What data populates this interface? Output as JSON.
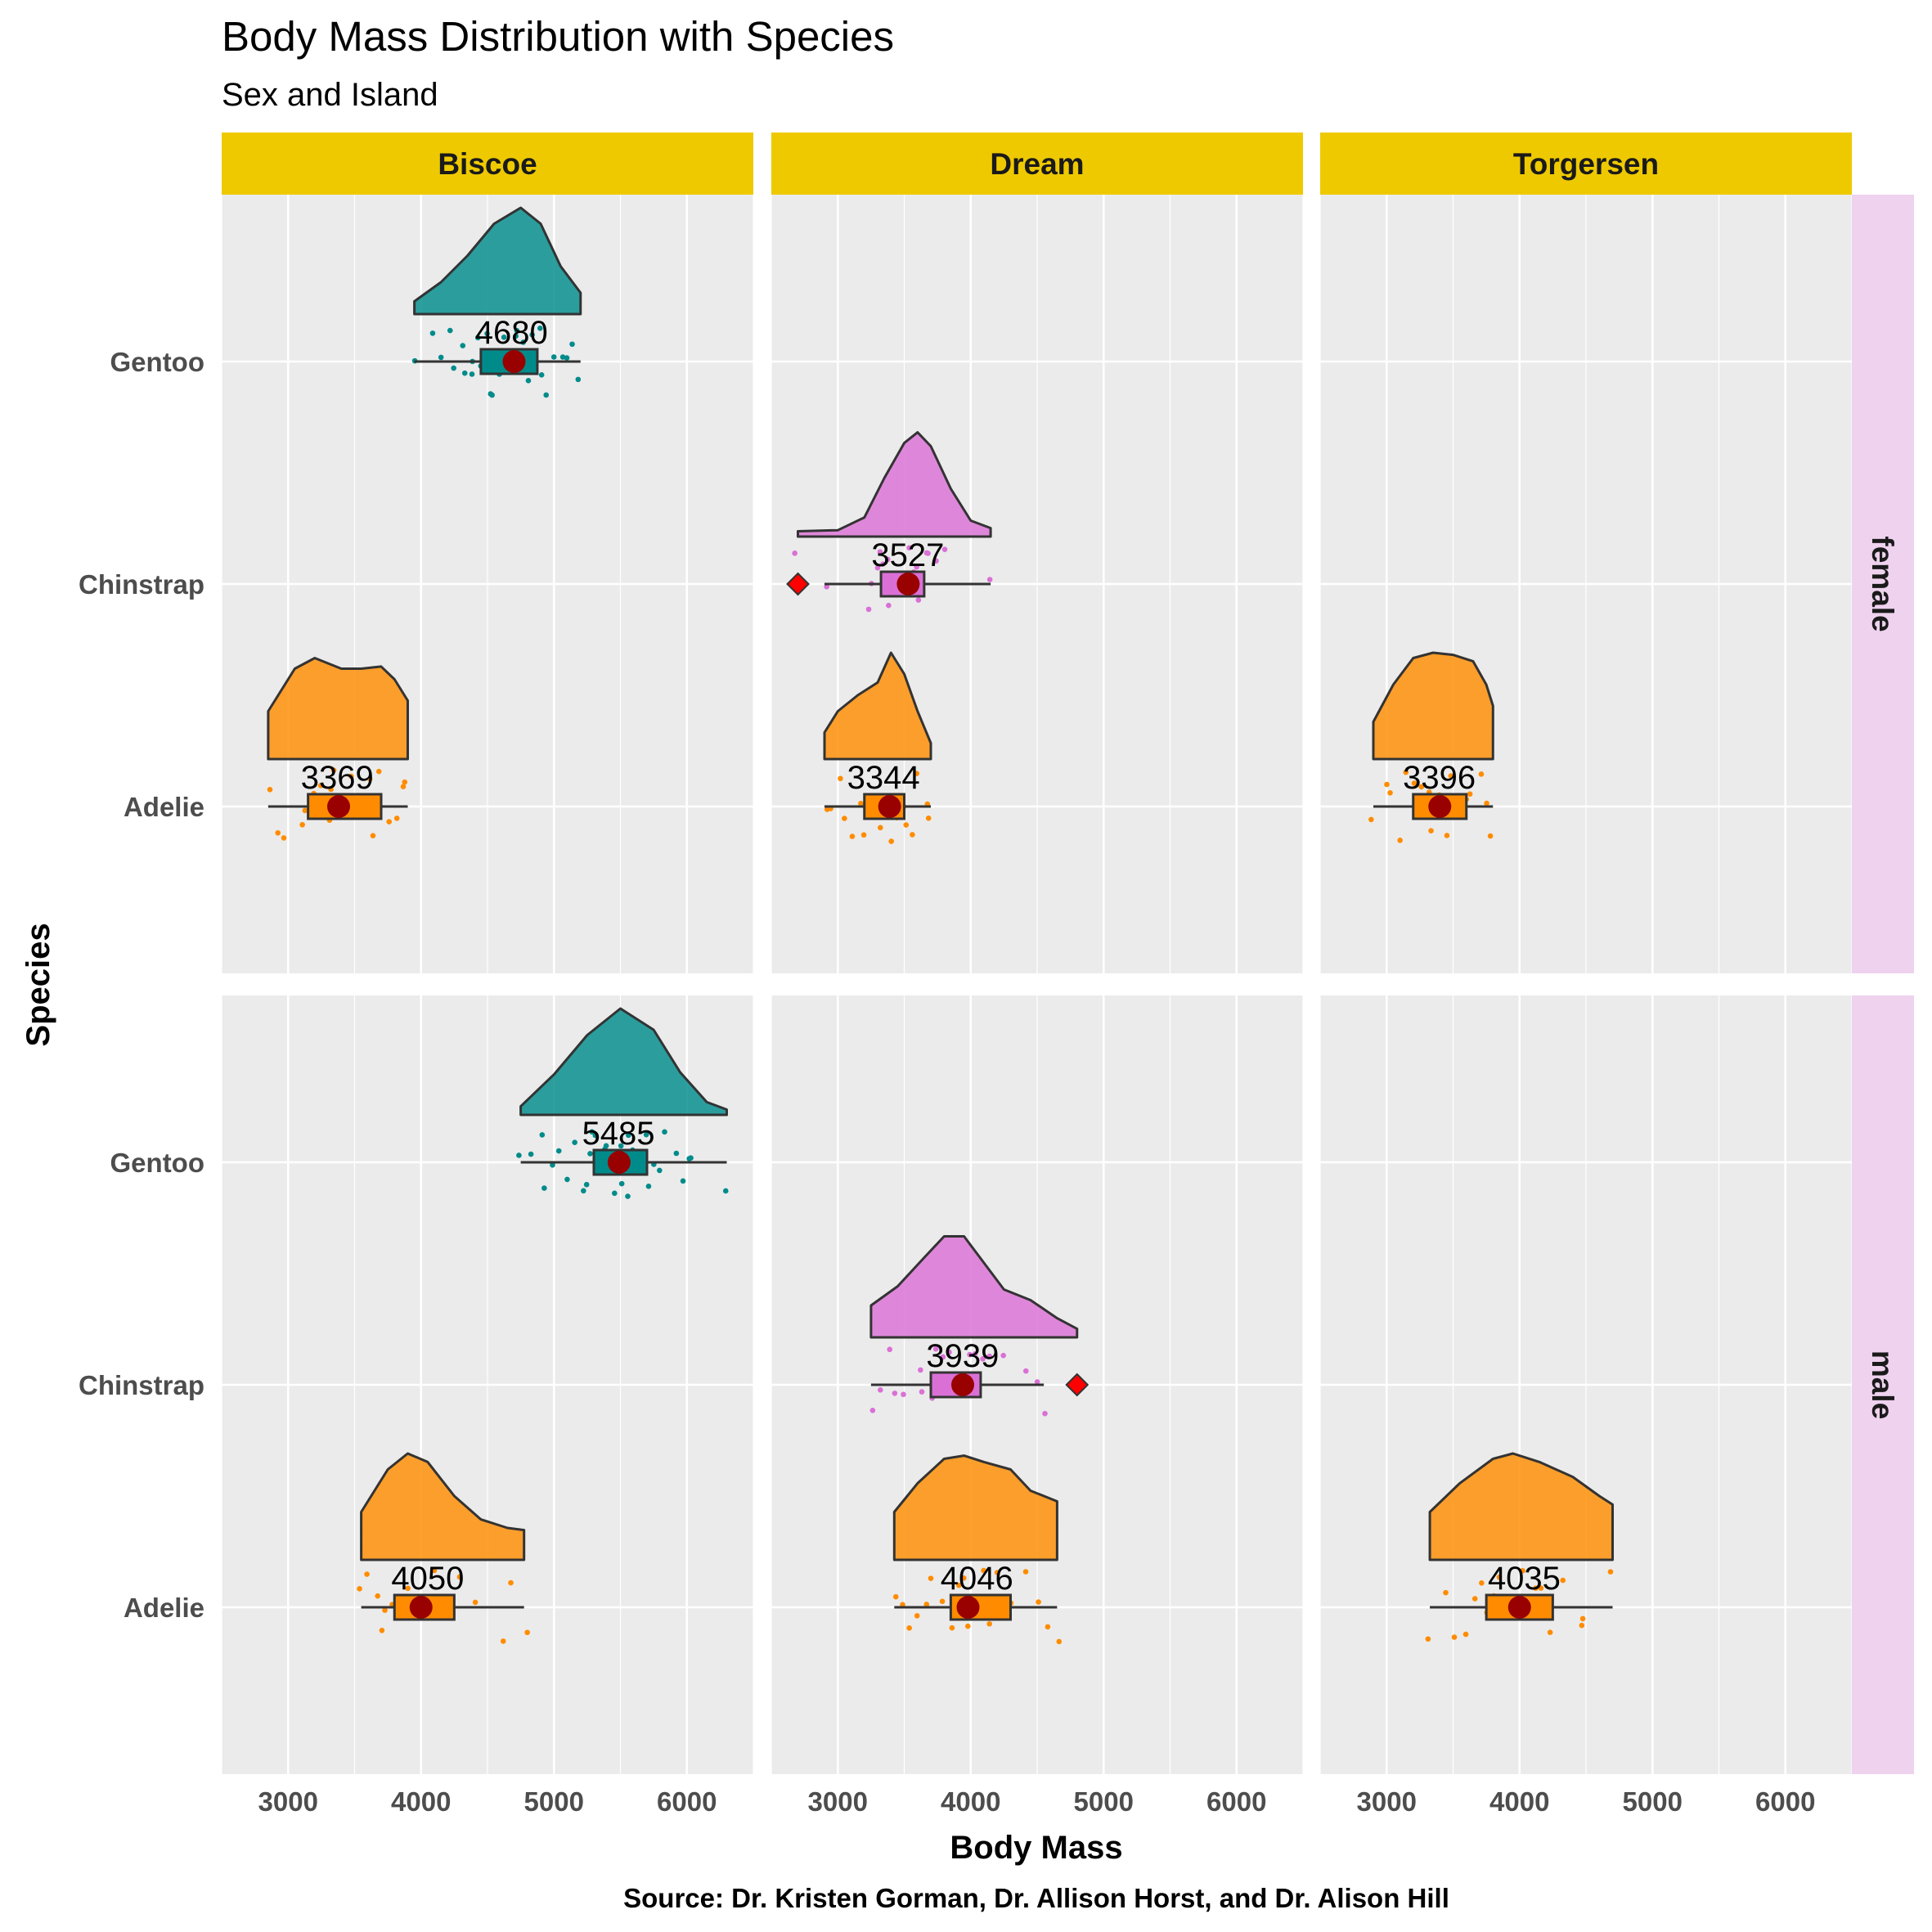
{
  "chart_data": {
    "type": "raincloud",
    "title": "Body Mass Distribution with Species",
    "subtitle": "Sex and Island",
    "xlabel": "Body Mass",
    "ylabel": "Species",
    "caption": "Source: Dr. Kristen Gorman, Dr. Allison Horst, and Dr. Alison Hill",
    "xlim": [
      2500,
      6500
    ],
    "xticks": [
      3000,
      4000,
      5000,
      6000
    ],
    "xtick_labels": [
      "3000",
      "4000",
      "5000",
      "6000"
    ],
    "categories": [
      "Adelie",
      "Chinstrap",
      "Gentoo"
    ],
    "facet_cols": [
      "Biscoe",
      "Dream",
      "Torgersen"
    ],
    "facet_rows": [
      "female",
      "male"
    ],
    "grid": true,
    "colors": {
      "Adelie": "#ff8c00",
      "Chinstrap": "#da70d6",
      "Gentoo": "#008b8b",
      "panel_bg": "#ebebeb",
      "col_strip": "#eec900",
      "row_strip": "#eed2ee",
      "mean_point": "#990000",
      "outlier": "#ff0000"
    },
    "panels": [
      {
        "row": "female",
        "col": "Biscoe",
        "groups": [
          {
            "species": "Gentoo",
            "label": "4680",
            "min": 3950,
            "q1": 4450,
            "median": 4680,
            "q3": 4875,
            "max": 5200,
            "mean": 4700,
            "density": [
              [
                3950,
                0.12
              ],
              [
                4150,
                0.3
              ],
              [
                4350,
                0.55
              ],
              [
                4550,
                0.85
              ],
              [
                4750,
                1.0
              ],
              [
                4900,
                0.85
              ],
              [
                5050,
                0.45
              ],
              [
                5200,
                0.2
              ]
            ],
            "points": [
              3950,
              4100,
              4150,
              4200,
              4250,
              4300,
              4350,
              4400,
              4400,
              4450,
              4450,
              4500,
              4500,
              4550,
              4550,
              4600,
              4600,
              4650,
              4650,
              4700,
              4700,
              4700,
              4750,
              4750,
              4800,
              4800,
              4850,
              4850,
              4900,
              4900,
              4950,
              5000,
              5050,
              5100,
              5150,
              5200
            ]
          },
          {
            "species": "Adelie",
            "label": "3369",
            "min": 2850,
            "q1": 3150,
            "median": 3369,
            "q3": 3700,
            "max": 3900,
            "mean": 3380,
            "density": [
              [
                2850,
                0.45
              ],
              [
                3050,
                0.85
              ],
              [
                3200,
                0.95
              ],
              [
                3400,
                0.85
              ],
              [
                3550,
                0.85
              ],
              [
                3700,
                0.87
              ],
              [
                3800,
                0.75
              ],
              [
                3900,
                0.55
              ]
            ],
            "points": [
              2850,
              2900,
              2950,
              3100,
              3150,
              3200,
              3250,
              3300,
              3300,
              3350,
              3400,
              3450,
              3500,
              3550,
              3600,
              3650,
              3700,
              3750,
              3800,
              3850,
              3900
            ]
          }
        ]
      },
      {
        "row": "female",
        "col": "Dream",
        "groups": [
          {
            "species": "Chinstrap",
            "label": "3527",
            "min": 2900,
            "q1": 3325,
            "median": 3527,
            "q3": 3650,
            "max": 4150,
            "mean": 3530,
            "outliers": [
              2700
            ],
            "density": [
              [
                2700,
                0.05
              ],
              [
                3000,
                0.06
              ],
              [
                3200,
                0.18
              ],
              [
                3350,
                0.55
              ],
              [
                3500,
                0.88
              ],
              [
                3600,
                0.98
              ],
              [
                3700,
                0.85
              ],
              [
                3850,
                0.45
              ],
              [
                4000,
                0.15
              ],
              [
                4150,
                0.08
              ]
            ],
            "points": [
              2700,
              2900,
              3250,
              3275,
              3300,
              3325,
              3350,
              3400,
              3400,
              3450,
              3450,
              3500,
              3525,
              3550,
              3550,
              3600,
              3600,
              3650,
              3700,
              3750,
              3800,
              4150
            ]
          },
          {
            "species": "Adelie",
            "label": "3344",
            "min": 2900,
            "q1": 3200,
            "median": 3344,
            "q3": 3500,
            "max": 3700,
            "mean": 3390,
            "density": [
              [
                2900,
                0.25
              ],
              [
                3000,
                0.45
              ],
              [
                3150,
                0.6
              ],
              [
                3300,
                0.72
              ],
              [
                3400,
                1.0
              ],
              [
                3500,
                0.8
              ],
              [
                3600,
                0.45
              ],
              [
                3700,
                0.15
              ]
            ],
            "points": [
              2900,
              2950,
              3000,
              3050,
              3100,
              3150,
              3200,
              3250,
              3300,
              3300,
              3350,
              3400,
              3400,
              3450,
              3500,
              3500,
              3550,
              3600,
              3650,
              3700
            ]
          }
        ]
      },
      {
        "row": "female",
        "col": "Torgersen",
        "groups": [
          {
            "species": "Adelie",
            "label": "3396",
            "min": 2900,
            "q1": 3200,
            "median": 3396,
            "q3": 3600,
            "max": 3800,
            "mean": 3400,
            "density": [
              [
                2900,
                0.35
              ],
              [
                3050,
                0.7
              ],
              [
                3200,
                0.95
              ],
              [
                3350,
                1.0
              ],
              [
                3500,
                0.98
              ],
              [
                3650,
                0.92
              ],
              [
                3750,
                0.7
              ],
              [
                3800,
                0.5
              ]
            ],
            "points": [
              2900,
              3000,
              3050,
              3100,
              3150,
              3200,
              3250,
              3300,
              3300,
              3350,
              3400,
              3450,
              3500,
              3550,
              3600,
              3650,
              3700,
              3750,
              3800
            ]
          }
        ]
      },
      {
        "row": "male",
        "col": "Biscoe",
        "groups": [
          {
            "species": "Gentoo",
            "label": "5485",
            "min": 4750,
            "q1": 5300,
            "median": 5485,
            "q3": 5700,
            "max": 6300,
            "mean": 5490,
            "density": [
              [
                4750,
                0.08
              ],
              [
                5000,
                0.38
              ],
              [
                5250,
                0.75
              ],
              [
                5500,
                1.0
              ],
              [
                5750,
                0.8
              ],
              [
                5950,
                0.4
              ],
              [
                6150,
                0.12
              ],
              [
                6300,
                0.05
              ]
            ],
            "points": [
              4750,
              4850,
              4900,
              4950,
              5000,
              5050,
              5100,
              5150,
              5200,
              5250,
              5250,
              5300,
              5300,
              5350,
              5400,
              5400,
              5450,
              5500,
              5500,
              5550,
              5550,
              5600,
              5650,
              5700,
              5700,
              5750,
              5800,
              5850,
              5900,
              5950,
              6000,
              6050,
              6300
            ]
          },
          {
            "species": "Adelie",
            "label": "4050",
            "min": 3550,
            "q1": 3800,
            "median": 4050,
            "q3": 4250,
            "max": 4775,
            "mean": 4000,
            "density": [
              [
                3550,
                0.45
              ],
              [
                3750,
                0.85
              ],
              [
                3900,
                1.0
              ],
              [
                4050,
                0.92
              ],
              [
                4250,
                0.6
              ],
              [
                4450,
                0.38
              ],
              [
                4650,
                0.3
              ],
              [
                4775,
                0.28
              ]
            ],
            "points": [
              3550,
              3600,
              3650,
              3700,
              3750,
              3800,
              3850,
              3900,
              3950,
              4000,
              4050,
              4100,
              4150,
              4200,
              4300,
              4400,
              4600,
              4700,
              4775
            ]
          }
        ]
      },
      {
        "row": "male",
        "col": "Dream",
        "groups": [
          {
            "species": "Chinstrap",
            "label": "3939",
            "min": 3250,
            "q1": 3700,
            "median": 3939,
            "q3": 4075,
            "max": 4550,
            "mean": 3940,
            "outliers": [
              4800
            ],
            "density": [
              [
                3250,
                0.3
              ],
              [
                3450,
                0.48
              ],
              [
                3650,
                0.75
              ],
              [
                3800,
                0.95
              ],
              [
                3950,
                0.95
              ],
              [
                4100,
                0.7
              ],
              [
                4250,
                0.45
              ],
              [
                4450,
                0.35
              ],
              [
                4650,
                0.18
              ],
              [
                4800,
                0.08
              ]
            ],
            "points": [
              3250,
              3300,
              3400,
              3450,
              3500,
              3600,
              3650,
              3700,
              3750,
              3800,
              3850,
              3900,
              3950,
              4000,
              4050,
              4100,
              4150,
              4250,
              4400,
              4500,
              4550
            ]
          },
          {
            "species": "Adelie",
            "label": "4046",
            "min": 3425,
            "q1": 3850,
            "median": 4046,
            "q3": 4300,
            "max": 4650,
            "mean": 3980,
            "density": [
              [
                3425,
                0.45
              ],
              [
                3600,
                0.72
              ],
              [
                3800,
                0.95
              ],
              [
                3950,
                0.98
              ],
              [
                4100,
                0.92
              ],
              [
                4300,
                0.85
              ],
              [
                4450,
                0.65
              ],
              [
                4650,
                0.55
              ]
            ],
            "points": [
              3425,
              3500,
              3550,
              3600,
              3650,
              3700,
              3800,
              3850,
              3900,
              3950,
              4000,
              4050,
              4100,
              4150,
              4200,
              4300,
              4400,
              4500,
              4600,
              4650
            ]
          }
        ]
      },
      {
        "row": "male",
        "col": "Torgersen",
        "groups": [
          {
            "species": "Adelie",
            "label": "4035",
            "min": 3325,
            "q1": 3750,
            "median": 4035,
            "q3": 4250,
            "max": 4700,
            "mean": 4000,
            "density": [
              [
                3325,
                0.45
              ],
              [
                3550,
                0.72
              ],
              [
                3800,
                0.95
              ],
              [
                3950,
                1.0
              ],
              [
                4150,
                0.92
              ],
              [
                4400,
                0.78
              ],
              [
                4600,
                0.6
              ],
              [
                4700,
                0.52
              ]
            ],
            "points": [
              3325,
              3450,
              3500,
              3600,
              3650,
              3700,
              3750,
              3800,
              3850,
              3900,
              3950,
              4000,
              4050,
              4100,
              4150,
              4200,
              4250,
              4350,
              4450,
              4500,
              4700
            ]
          }
        ]
      }
    ]
  }
}
